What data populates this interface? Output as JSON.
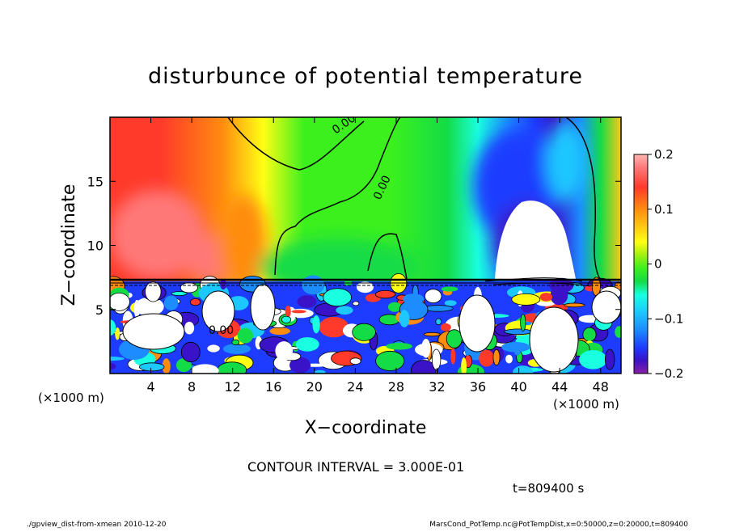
{
  "chart_data": {
    "type": "heatmap",
    "title": "disturbunce of potential temperature",
    "xlabel": "X−coordinate",
    "ylabel": "Z−coordinate",
    "x_unit_label": "(×1000 m)",
    "xlim": [
      0,
      50
    ],
    "ylim": [
      0,
      20
    ],
    "x_ticks": [
      4,
      8,
      12,
      16,
      20,
      24,
      28,
      32,
      36,
      40,
      44,
      48
    ],
    "y_ticks": [
      5,
      10,
      15
    ],
    "grid": false,
    "colorbar": {
      "ticks": [
        "0.2",
        "0.1",
        "0",
        "−0.1",
        "−0.2"
      ],
      "values": [
        0.2,
        0.1,
        0,
        -0.1,
        -0.2
      ],
      "range": [
        -0.2,
        0.2
      ]
    },
    "contour_labels": [
      "0.00",
      "0.00",
      "0.00"
    ],
    "contour_interval_text": "CONTOUR INTERVAL = 3.000E-01",
    "time_text": "t=809400 s",
    "upper_field_samples": [
      {
        "x": 3,
        "z": 12,
        "value": 0.2
      },
      {
        "x": 8,
        "z": 10,
        "value": 0.18
      },
      {
        "x": 14,
        "z": 15,
        "value": 0.06
      },
      {
        "x": 24,
        "z": 14,
        "value": 0.0
      },
      {
        "x": 32,
        "z": 12,
        "value": -0.05
      },
      {
        "x": 38,
        "z": 14,
        "value": -0.12
      },
      {
        "x": 41,
        "z": 11,
        "value": -0.22
      },
      {
        "x": 47,
        "z": 14,
        "value": 0.04
      },
      {
        "x": 49.5,
        "z": 12,
        "value": 0.1
      }
    ]
  },
  "footer": {
    "left": "./gpview_dist-from-xmean   2010-12-20",
    "right": "MarsCond_PotTemp.nc@PotTempDist,x=0:50000,z=0:20000,t=809400"
  },
  "colors": {
    "scale": [
      "#8a1fa6",
      "#3a12c8",
      "#1e3cff",
      "#1c8cff",
      "#1cc8ff",
      "#19ffe0",
      "#14e89a",
      "#14dc46",
      "#3cf01e",
      "#9ef014",
      "#ffff14",
      "#ffc814",
      "#ff8c0f",
      "#ff3a2a",
      "#ff7878",
      "#ffb4b4"
    ]
  }
}
